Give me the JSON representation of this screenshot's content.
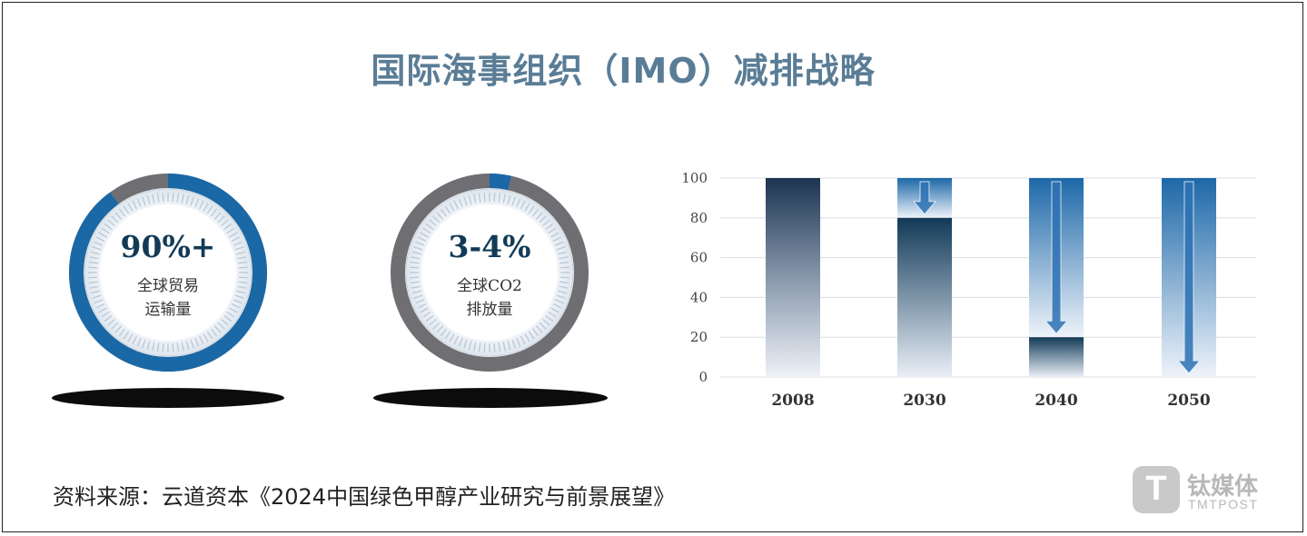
{
  "title": "国际海事组织（IMO）减排战略",
  "stats": [
    {
      "value": "90%+",
      "line1": "全球贸易",
      "line2": "运输量",
      "fraction": 0.9
    },
    {
      "value": "3-4%",
      "line1": "全球CO2",
      "line2": "排放量",
      "fraction": 0.035
    }
  ],
  "chart_data": {
    "type": "bar",
    "categories": [
      "2008",
      "2030",
      "2040",
      "2050"
    ],
    "values": [
      100,
      80,
      20,
      0
    ],
    "ylim": [
      0,
      100
    ],
    "yticks": [
      0,
      20,
      40,
      60,
      80,
      100
    ],
    "xlabel": "",
    "ylabel": "",
    "grid": true
  },
  "source": "资料来源：云道资本《2024中国绿色甲醇产业研究与前景展望》",
  "watermark": {
    "cn": "钛媒体",
    "en": "TMTPOST",
    "glyph": "T"
  },
  "colors": {
    "title": "#5a7d96",
    "ring_blue": "#1a68a6",
    "ring_gray": "#6f6f73",
    "bar_dark": "#163a57",
    "bar_light": "#eaf0f8",
    "arrow": "#2d72b4"
  }
}
